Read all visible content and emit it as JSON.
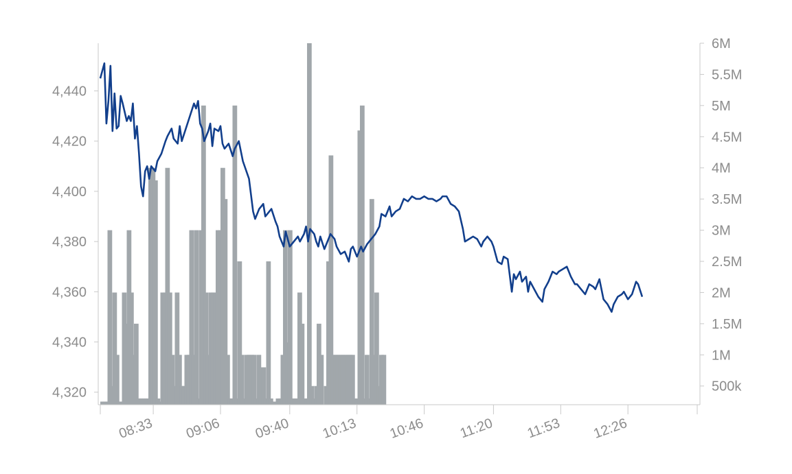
{
  "chart_data": {
    "type": "bar+line",
    "title": "",
    "xlabel": "",
    "ylabel": "",
    "x_range": [
      "08:07",
      "13:00"
    ],
    "x_ticks": [
      "08:33",
      "09:06",
      "09:40",
      "10:13",
      "10:46",
      "11:20",
      "11:53",
      "12:26"
    ],
    "y_left": {
      "ticks": [
        "4,320",
        "4,340",
        "4,360",
        "4,380",
        "4,400",
        "4,420",
        "4,440"
      ],
      "range": [
        4315,
        4459
      ]
    },
    "y_right": {
      "ticks": [
        "500k",
        "1M",
        "1.5M",
        "2M",
        "2.5M",
        "3M",
        "3.5M",
        "4M",
        "4.5M",
        "5M",
        "5.5M",
        "6M"
      ],
      "range": [
        200000,
        6000000
      ]
    },
    "colors": {
      "price_line": "#123f8c",
      "volume_bars": "#a1a7ab",
      "axis": "#c9c9c9",
      "labels": "#8c8c8c"
    },
    "series": [
      {
        "type": "line",
        "axis": "left",
        "values": [
          [
            "08:07",
            4445
          ],
          [
            "08:09",
            4451
          ],
          [
            "08:10",
            4427
          ],
          [
            "08:11",
            4436
          ],
          [
            "08:12",
            4450
          ],
          [
            "08:13",
            4424
          ],
          [
            "08:14",
            4439
          ],
          [
            "08:15",
            4425
          ],
          [
            "08:16",
            4426
          ],
          [
            "08:17",
            4438
          ],
          [
            "08:18",
            4435
          ],
          [
            "08:20",
            4428
          ],
          [
            "08:21",
            4430
          ],
          [
            "08:22",
            4428
          ],
          [
            "08:23",
            4435
          ],
          [
            "08:24",
            4421
          ],
          [
            "08:25",
            4426
          ],
          [
            "08:26",
            4415
          ],
          [
            "08:27",
            4402
          ],
          [
            "08:28",
            4398
          ],
          [
            "08:29",
            4408
          ],
          [
            "08:30",
            4410
          ],
          [
            "08:31",
            4405
          ],
          [
            "08:32",
            4410
          ],
          [
            "08:34",
            4408
          ],
          [
            "08:35",
            4412
          ],
          [
            "08:37",
            4415
          ],
          [
            "08:39",
            4420
          ],
          [
            "08:40",
            4422
          ],
          [
            "08:42",
            4425
          ],
          [
            "08:43",
            4421
          ],
          [
            "08:45",
            4419
          ],
          [
            "08:46",
            4426
          ],
          [
            "08:47",
            4420
          ],
          [
            "08:49",
            4425
          ],
          [
            "08:51",
            4430
          ],
          [
            "08:53",
            4435
          ],
          [
            "08:54",
            4433
          ],
          [
            "08:55",
            4436
          ],
          [
            "08:56",
            4427
          ],
          [
            "08:57",
            4425
          ],
          [
            "08:58",
            4420
          ],
          [
            "09:00",
            4424
          ],
          [
            "09:01",
            4427
          ],
          [
            "09:02",
            4418
          ],
          [
            "09:03",
            4425
          ],
          [
            "09:05",
            4424
          ],
          [
            "09:06",
            4426
          ],
          [
            "09:07",
            4419
          ],
          [
            "09:08",
            4417
          ],
          [
            "09:10",
            4419
          ],
          [
            "09:12",
            4414
          ],
          [
            "09:13",
            4417
          ],
          [
            "09:15",
            4420
          ],
          [
            "09:16",
            4416
          ],
          [
            "09:17",
            4412
          ],
          [
            "09:20",
            4405
          ],
          [
            "09:22",
            4392
          ],
          [
            "09:23",
            4389
          ],
          [
            "09:25",
            4393
          ],
          [
            "09:27",
            4395
          ],
          [
            "09:28",
            4390
          ],
          [
            "09:30",
            4392
          ],
          [
            "09:31",
            4393
          ],
          [
            "09:33",
            4388
          ],
          [
            "09:34",
            4386
          ],
          [
            "09:35",
            4382
          ],
          [
            "09:37",
            4378
          ],
          [
            "09:38",
            4384
          ],
          [
            "09:40",
            4378
          ],
          [
            "09:42",
            4380
          ],
          [
            "09:44",
            4382
          ],
          [
            "09:45",
            4380
          ],
          [
            "09:47",
            4383
          ],
          [
            "09:48",
            4386
          ],
          [
            "09:49",
            4380
          ],
          [
            "09:50",
            4385
          ],
          [
            "09:52",
            4383
          ],
          [
            "09:53",
            4380
          ],
          [
            "09:54",
            4378
          ],
          [
            "09:55",
            4382
          ],
          [
            "09:57",
            4377
          ],
          [
            "09:59",
            4381
          ],
          [
            "10:00",
            4383
          ],
          [
            "10:02",
            4381
          ],
          [
            "10:03",
            4378
          ],
          [
            "10:05",
            4375
          ],
          [
            "10:07",
            4376
          ],
          [
            "10:09",
            4372
          ],
          [
            "10:10",
            4377
          ],
          [
            "10:11",
            4378
          ],
          [
            "10:13",
            4374
          ],
          [
            "10:15",
            4378
          ],
          [
            "10:16",
            4376
          ],
          [
            "10:18",
            4379
          ],
          [
            "10:20",
            4381
          ],
          [
            "10:22",
            4383
          ],
          [
            "10:24",
            4386
          ],
          [
            "10:25",
            4391
          ],
          [
            "10:27",
            4390
          ],
          [
            "10:29",
            4394
          ],
          [
            "10:30",
            4390
          ],
          [
            "10:32",
            4392
          ],
          [
            "10:34",
            4393
          ],
          [
            "10:36",
            4397
          ],
          [
            "10:38",
            4396
          ],
          [
            "10:40",
            4398
          ],
          [
            "10:42",
            4397
          ],
          [
            "10:44",
            4397
          ],
          [
            "10:46",
            4398
          ],
          [
            "10:48",
            4397
          ],
          [
            "10:50",
            4397
          ],
          [
            "10:52",
            4396
          ],
          [
            "10:54",
            4397
          ],
          [
            "10:55",
            4398
          ],
          [
            "10:57",
            4398
          ],
          [
            "10:59",
            4395
          ],
          [
            "11:01",
            4394
          ],
          [
            "11:03",
            4392
          ],
          [
            "11:05",
            4385
          ],
          [
            "11:06",
            4380
          ],
          [
            "11:08",
            4381
          ],
          [
            "11:10",
            4382
          ],
          [
            "11:12",
            4381
          ],
          [
            "11:14",
            4378
          ],
          [
            "11:15",
            4380
          ],
          [
            "11:17",
            4382
          ],
          [
            "11:19",
            4380
          ],
          [
            "11:20",
            4378
          ],
          [
            "11:22",
            4372
          ],
          [
            "11:24",
            4371
          ],
          [
            "11:25",
            4374
          ],
          [
            "11:27",
            4373
          ],
          [
            "11:29",
            4360
          ],
          [
            "11:30",
            4367
          ],
          [
            "11:31",
            4365
          ],
          [
            "11:33",
            4368
          ],
          [
            "11:34",
            4364
          ],
          [
            "11:36",
            4366
          ],
          [
            "11:37",
            4360
          ],
          [
            "11:38",
            4364
          ],
          [
            "11:40",
            4361
          ],
          [
            "11:42",
            4358
          ],
          [
            "11:44",
            4356
          ],
          [
            "11:45",
            4361
          ],
          [
            "11:47",
            4364
          ],
          [
            "11:49",
            4368
          ],
          [
            "11:51",
            4367
          ],
          [
            "11:52",
            4368
          ],
          [
            "11:54",
            4369
          ],
          [
            "11:56",
            4370
          ],
          [
            "11:58",
            4366
          ],
          [
            "12:00",
            4363
          ],
          [
            "12:01",
            4363
          ],
          [
            "12:03",
            4361
          ],
          [
            "12:05",
            4359
          ],
          [
            "12:07",
            4363
          ],
          [
            "12:09",
            4362
          ],
          [
            "12:10",
            4361
          ],
          [
            "12:12",
            4365
          ],
          [
            "12:14",
            4357
          ],
          [
            "12:16",
            4355
          ],
          [
            "12:18",
            4352
          ],
          [
            "12:19",
            4355
          ],
          [
            "12:21",
            4358
          ],
          [
            "12:23",
            4359
          ],
          [
            "12:24",
            4360
          ],
          [
            "12:26",
            4357
          ],
          [
            "12:28",
            4359
          ],
          [
            "12:30",
            4364
          ],
          [
            "12:31",
            4363
          ],
          [
            "12:33",
            4358
          ]
        ]
      },
      {
        "type": "bar",
        "axis": "right",
        "bar_start": "08:07",
        "bar_step_minutes": 1.18,
        "values": [
          250000,
          250000,
          250000,
          3000000,
          500000,
          2000000,
          1000000,
          250000,
          250000,
          2000000,
          1500000,
          3000000,
          2000000,
          1000000,
          1500000,
          300000,
          300000,
          300000,
          300000,
          300000,
          4000000,
          4000000,
          3800000,
          300000,
          250000,
          2000000,
          2000000,
          4000000,
          2000000,
          1000000,
          500000,
          2000000,
          1000000,
          500000,
          500000,
          1000000,
          1000000,
          3000000,
          1000000,
          3000000,
          300000,
          3000000,
          5000000,
          2000000,
          1000000,
          2000000,
          2000000,
          2000000,
          3000000,
          3000000,
          4000000,
          3500000,
          1000000,
          300000,
          300000,
          5000000,
          300000,
          2500000,
          1000000,
          300000,
          1000000,
          1000000,
          1000000,
          1000000,
          300000,
          1000000,
          800000,
          800000,
          300000,
          2500000,
          300000,
          250000,
          250000,
          300000,
          300000,
          1000000,
          3000000,
          1200000,
          3000000,
          300000,
          300000,
          300000,
          2000000,
          1500000,
          300000,
          300000,
          6000000,
          500000,
          300000,
          500000,
          1500000,
          1000000,
          200000,
          500000,
          2500000,
          4200000,
          1000000,
          1000000,
          1000000,
          1000000,
          1000000,
          1000000,
          1000000,
          1000000,
          1000000,
          300000,
          300000,
          4600000,
          5000000,
          300000,
          1000000,
          300000,
          3500000,
          1000000,
          2000000,
          500000,
          1000000,
          1000000
        ]
      }
    ]
  }
}
